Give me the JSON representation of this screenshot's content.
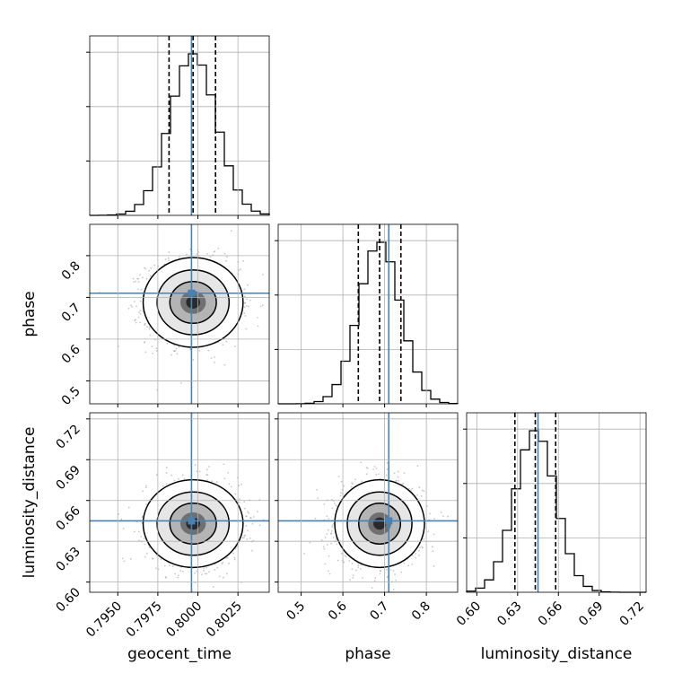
{
  "chart_data": {
    "type": "corner",
    "parameters": [
      "geocent_time",
      "phase",
      "luminosity_distance"
    ],
    "labels": [
      "geocent_time",
      "phase",
      "luminosity_distance"
    ],
    "ranges": [
      [
        0.79325,
        0.80445
      ],
      [
        0.445,
        0.875
      ],
      [
        0.5925,
        0.7245
      ]
    ],
    "ticks": [
      [
        "0.7950",
        "0.7975",
        "0.8000",
        "0.8025"
      ],
      [
        "0.5",
        "0.6",
        "0.7",
        "0.8"
      ],
      [
        "0.60",
        "0.63",
        "0.66",
        "0.69",
        "0.72"
      ]
    ],
    "truths": [
      0.7996,
      0.71,
      0.645
    ],
    "quantiles_16_50_84": [
      [
        0.7982,
        0.7997,
        0.8011
      ],
      [
        0.637,
        0.688,
        0.739
      ],
      [
        0.628,
        0.643,
        0.658
      ]
    ],
    "posterior_mean": [
      0.7997,
      0.688,
      0.643
    ],
    "posterior_std": [
      0.00145,
      0.05,
      0.015
    ],
    "grid": true,
    "colors": {
      "truth": "#4682b4",
      "hist": "#000000",
      "samples": "#9a9a9a"
    }
  }
}
